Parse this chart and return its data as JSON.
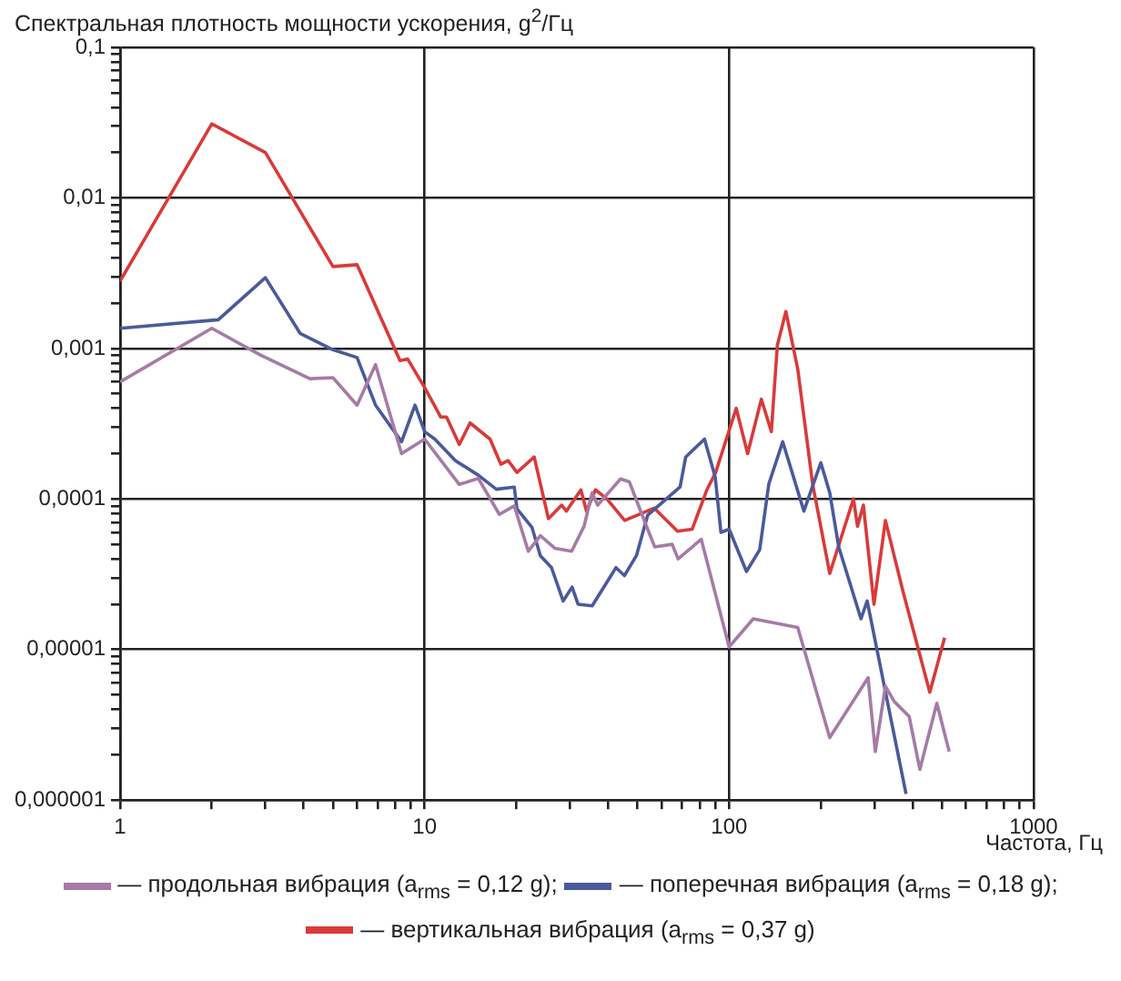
{
  "chart_data": {
    "type": "line",
    "ylabel": "Спектральная плотность мощности ускорения, g$^{2}$/Гц",
    "xlabel": "Частота, Гц",
    "log": "xy",
    "grid": true,
    "legend": "bottom",
    "marker": "none",
    "line_style": "solid",
    "xlim": [
      1,
      1000
    ],
    "ylim": [
      1e-06,
      0.1
    ],
    "xticks": [
      1,
      {
        "value": 2,
        "label": null
      },
      {
        "value": 3,
        "label": null
      },
      {
        "value": 4,
        "label": null
      },
      {
        "value": 5,
        "label": null
      },
      {
        "value": 6,
        "label": null
      },
      {
        "value": 7,
        "label": null
      },
      {
        "value": 8,
        "label": null
      },
      {
        "value": 9,
        "label": null
      },
      10,
      {
        "value": 20,
        "label": null
      },
      {
        "value": 30,
        "label": null
      },
      {
        "value": 40,
        "label": null
      },
      {
        "value": 50,
        "label": null
      },
      {
        "value": 60,
        "label": null
      },
      {
        "value": 70,
        "label": null
      },
      {
        "value": 80,
        "label": null
      },
      {
        "value": 90,
        "label": null
      },
      100,
      {
        "value": 200,
        "label": null
      },
      {
        "value": 300,
        "label": null
      },
      {
        "value": 400,
        "label": null
      },
      {
        "value": 500,
        "label": null
      },
      {
        "value": 600,
        "label": null
      },
      {
        "value": 700,
        "label": null
      },
      {
        "value": 800,
        "label": null
      },
      {
        "value": 900,
        "label": null
      },
      1000
    ],
    "yticks": [
      {
        "value": 1e-06,
        "label": "0,000001"
      },
      {
        "value": 2e-06,
        "label": null
      },
      {
        "value": 3e-06,
        "label": null
      },
      {
        "value": 4e-06,
        "label": null
      },
      {
        "value": 5e-06,
        "label": null
      },
      {
        "value": 6e-06,
        "label": null
      },
      {
        "value": 7e-06,
        "label": null
      },
      {
        "value": 8e-06,
        "label": null
      },
      {
        "value": 9e-06,
        "label": null
      },
      {
        "value": 1e-05,
        "label": "0,00001"
      },
      {
        "value": 2e-05,
        "label": null
      },
      {
        "value": 3e-05,
        "label": null
      },
      {
        "value": 4e-05,
        "label": null
      },
      {
        "value": 5e-05,
        "label": null
      },
      {
        "value": 6e-05,
        "label": null
      },
      {
        "value": 7e-05,
        "label": null
      },
      {
        "value": 8e-05,
        "label": null
      },
      {
        "value": 9e-05,
        "label": null
      },
      {
        "value": 0.0001,
        "label": "0,0001"
      },
      {
        "value": 0.0002,
        "label": null
      },
      {
        "value": 0.0003,
        "label": null
      },
      {
        "value": 0.0004,
        "label": null
      },
      {
        "value": 0.0005,
        "label": null
      },
      {
        "value": 0.0006,
        "label": null
      },
      {
        "value": 0.0007,
        "label": null
      },
      {
        "value": 0.0008,
        "label": null
      },
      {
        "value": 0.0009,
        "label": null
      },
      {
        "value": 0.001,
        "label": "0,001"
      },
      {
        "value": 0.002,
        "label": null
      },
      {
        "value": 0.003,
        "label": null
      },
      {
        "value": 0.004,
        "label": null
      },
      {
        "value": 0.005,
        "label": null
      },
      {
        "value": 0.006,
        "label": null
      },
      {
        "value": 0.007,
        "label": null
      },
      {
        "value": 0.008,
        "label": null
      },
      {
        "value": 0.009,
        "label": null
      },
      {
        "value": 0.01,
        "label": "0,01"
      },
      {
        "value": 0.02,
        "label": null
      },
      {
        "value": 0.03,
        "label": null
      },
      {
        "value": 0.04,
        "label": null
      },
      {
        "value": 0.05,
        "label": null
      },
      {
        "value": 0.06,
        "label": null
      },
      {
        "value": 0.07,
        "label": null
      },
      {
        "value": 0.08,
        "label": null
      },
      {
        "value": 0.09,
        "label": null
      },
      {
        "value": 0.1,
        "label": "0,1"
      }
    ],
    "series": [
      {
        "name": "— продольная вибрация (a$_{rms}$ = 0,12 g);",
        "color": "#a67ba6",
        "x": [
          1,
          2,
          2.9,
          4.2,
          5,
          6,
          6.9,
          8.4,
          10,
          13,
          15,
          17.6,
          19.7,
          21.9,
          24,
          26.8,
          30.4,
          33.4,
          35.5,
          37,
          44,
          47,
          54,
          57,
          65,
          68,
          81,
          100,
          120,
          168,
          214,
          286,
          302,
          326,
          349,
          390,
          423,
          481,
          528
        ],
        "values": [
          0.0006,
          0.00136,
          0.0009,
          0.00063,
          0.00064,
          0.00042,
          0.00078,
          0.0002,
          0.00025,
          0.000125,
          0.000137,
          7.9e-05,
          9e-05,
          4.5e-05,
          5.7e-05,
          4.7e-05,
          4.5e-05,
          6.6e-05,
          0.00011,
          9.1e-05,
          0.000136,
          0.00013,
          6.3e-05,
          4.8e-05,
          5e-05,
          4e-05,
          5.4e-05,
          1.04e-05,
          1.6e-05,
          1.4e-05,
          2.6e-06,
          6.5e-06,
          2.1e-06,
          5.7e-06,
          4.5e-06,
          3.6e-06,
          1.6e-06,
          4.4e-06,
          2.1e-06
        ]
      },
      {
        "name": "— поперечная вибрация (a$_{rms}$ = 0,18 g);",
        "color": "#4a5a9a",
        "x": [
          1,
          2.1,
          3,
          3.9,
          5,
          6,
          6.9,
          8.4,
          9.3,
          10,
          10.8,
          12.6,
          15,
          17.2,
          19.7,
          20.1,
          22.5,
          24,
          26.1,
          28.5,
          30.5,
          31.9,
          35.5,
          42.5,
          45.3,
          49.6,
          54,
          69,
          72,
          83,
          90,
          94,
          100,
          114,
          126,
          135,
          150,
          176,
          200,
          214,
          229,
          271,
          284,
          313,
          381
        ],
        "values": [
          0.00136,
          0.00155,
          0.00295,
          0.00126,
          0.00098,
          0.00087,
          0.00042,
          0.00024,
          0.00042,
          0.00028,
          0.00025,
          0.00018,
          0.000144,
          0.000116,
          0.00012,
          8.6e-05,
          6.5e-05,
          4.2e-05,
          3.5e-05,
          2.1e-05,
          2.6e-05,
          2e-05,
          1.95e-05,
          3.5e-05,
          3.1e-05,
          4.2e-05,
          7.8e-05,
          0.00012,
          0.00019,
          0.00025,
          0.00014,
          6e-05,
          6.3e-05,
          3.3e-05,
          4.6e-05,
          0.000126,
          0.00024,
          8.3e-05,
          0.000174,
          0.00011,
          4.8e-05,
          1.6e-05,
          2.1e-05,
          7.9e-06,
          1.1e-06
        ]
      },
      {
        "name": "— вертикальная вибрация (a$_{rms}$ = 0,37 g)",
        "color": "#d93a3a",
        "x": [
          1,
          2,
          3,
          5,
          6,
          8.3,
          8.8,
          10,
          11.3,
          11.8,
          13,
          14.1,
          16.4,
          17.8,
          18.8,
          20.1,
          22.9,
          25.5,
          28.2,
          29.2,
          32.6,
          34,
          36.4,
          39.7,
          45.4,
          56.7,
          67.7,
          75.6,
          84.5,
          90.3,
          105.5,
          115,
          127.6,
          137.6,
          144,
          153.6,
          168,
          188,
          214,
          256,
          264,
          276,
          299,
          326,
          373,
          456,
          510
        ],
        "values": [
          0.0028,
          0.031,
          0.02,
          0.0035,
          0.0036,
          0.00083,
          0.00085,
          0.00055,
          0.00035,
          0.00035,
          0.00023,
          0.00032,
          0.00025,
          0.00017,
          0.00018,
          0.00015,
          0.00019,
          7.4e-05,
          9.1e-05,
          8.3e-05,
          0.000115,
          8.3e-05,
          0.000115,
          0.0001,
          7.2e-05,
          8.7e-05,
          6.1e-05,
          6.3e-05,
          0.000115,
          0.00015,
          0.0004,
          0.0002,
          0.00046,
          0.00028,
          0.00105,
          0.00176,
          0.00073,
          0.000126,
          3.2e-05,
          0.0001,
          6.6e-05,
          9.1e-05,
          2e-05,
          7.2e-05,
          2.4e-05,
          5.2e-06,
          1.2e-05
        ]
      }
    ]
  }
}
